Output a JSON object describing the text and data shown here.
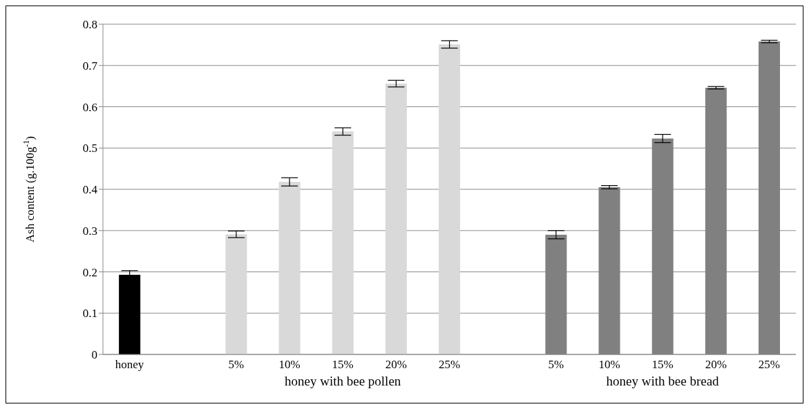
{
  "chart_data": {
    "type": "bar",
    "ylabel": "Ash content (g.100g$^{-1}$)",
    "categories": [
      "honey",
      null,
      "5%",
      "10%",
      "15%",
      "20%",
      "25%",
      null,
      "5%",
      "10%",
      "15%",
      "20%",
      "25%"
    ],
    "values": [
      0.193,
      null,
      0.291,
      0.418,
      0.54,
      0.656,
      0.751,
      null,
      0.29,
      0.405,
      0.523,
      0.646,
      0.758
    ],
    "errors": [
      0.01,
      null,
      0.008,
      0.01,
      0.009,
      0.008,
      0.009,
      null,
      0.01,
      0.004,
      0.01,
      0.003,
      0.003
    ],
    "colors": [
      "#000000",
      null,
      "#d9d9d9",
      "#d9d9d9",
      "#d9d9d9",
      "#d9d9d9",
      "#d9d9d9",
      null,
      "#808080",
      "#808080",
      "#808080",
      "#808080",
      "#808080"
    ],
    "ylim": [
      0,
      0.8
    ],
    "yticks": [
      0,
      0.1,
      0.2,
      0.3,
      0.4,
      0.5,
      0.6,
      0.7,
      0.8
    ],
    "grid": "y",
    "annotations": [
      "honey with bee pollen",
      "honey with bee bread"
    ]
  }
}
